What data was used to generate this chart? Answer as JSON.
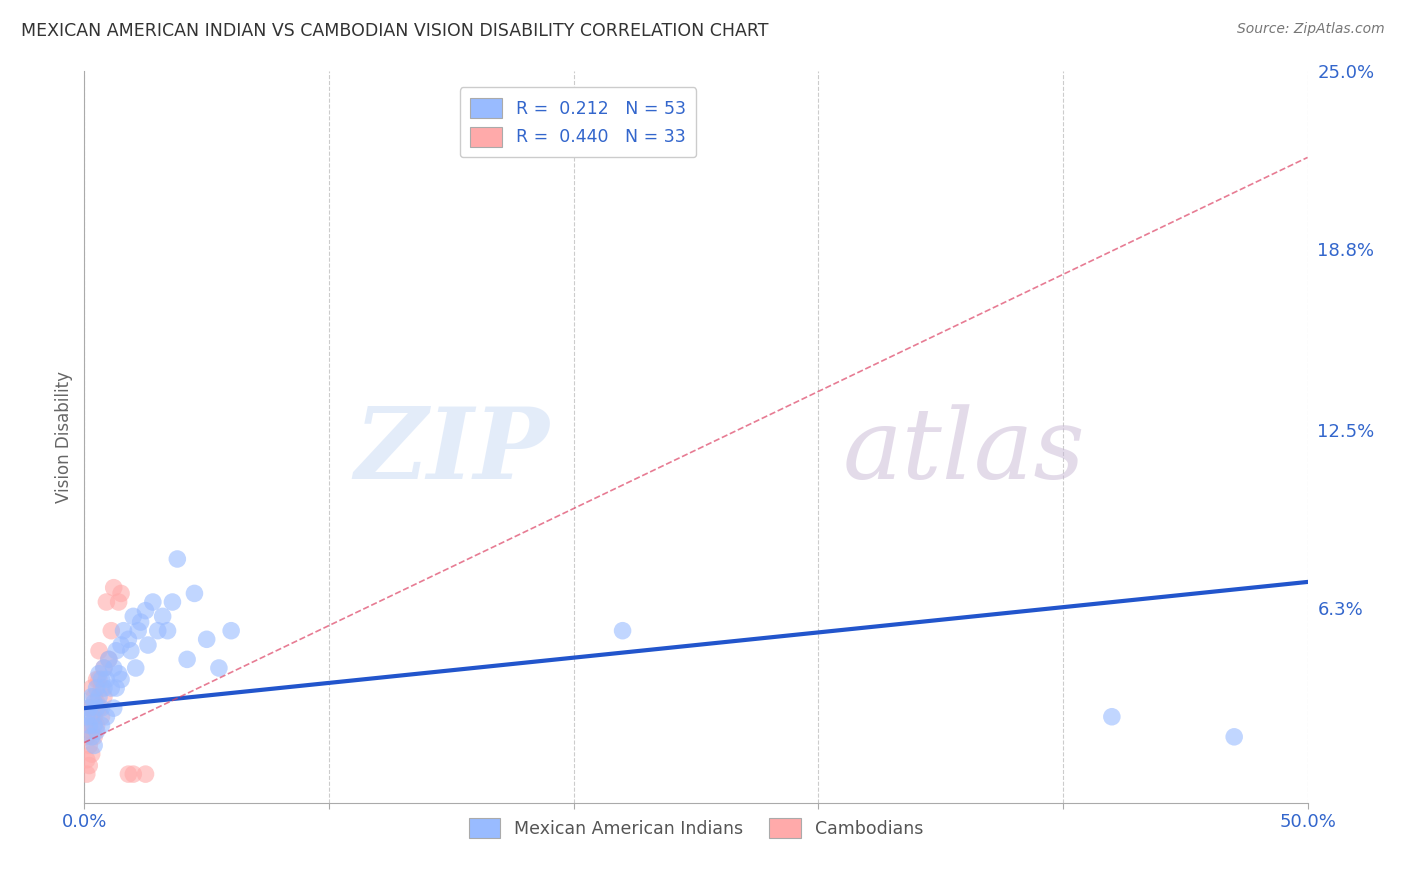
{
  "title": "MEXICAN AMERICAN INDIAN VS CAMBODIAN VISION DISABILITY CORRELATION CHART",
  "source": "Source: ZipAtlas.com",
  "ylabel": "Vision Disability",
  "xlim": [
    0.0,
    0.5
  ],
  "ylim": [
    -0.005,
    0.25
  ],
  "yticks_right": [
    0.25,
    0.188,
    0.125,
    0.063,
    0.0
  ],
  "ytick_labels_right": [
    "25.0%",
    "18.8%",
    "12.5%",
    "6.3%",
    ""
  ],
  "legend_blue_r": "R =  0.212",
  "legend_blue_n": "N = 53",
  "legend_pink_r": "R =  0.440",
  "legend_pink_n": "N = 33",
  "blue_color": "#99bbff",
  "pink_color": "#ffaaaa",
  "trendline_blue_color": "#2255cc",
  "trendline_pink_color": "#dd4466",
  "grid_color": "#cccccc",
  "background_color": "#ffffff",
  "watermark_zip": "ZIP",
  "watermark_atlas": "atlas",
  "blue_scatter_x": [
    0.001,
    0.002,
    0.002,
    0.003,
    0.003,
    0.003,
    0.004,
    0.004,
    0.004,
    0.005,
    0.005,
    0.005,
    0.006,
    0.006,
    0.007,
    0.007,
    0.007,
    0.008,
    0.008,
    0.009,
    0.009,
    0.01,
    0.011,
    0.012,
    0.012,
    0.013,
    0.013,
    0.014,
    0.015,
    0.015,
    0.016,
    0.018,
    0.019,
    0.02,
    0.021,
    0.022,
    0.023,
    0.025,
    0.026,
    0.028,
    0.03,
    0.032,
    0.034,
    0.036,
    0.038,
    0.042,
    0.045,
    0.05,
    0.055,
    0.06,
    0.22,
    0.42,
    0.47
  ],
  "blue_scatter_y": [
    0.025,
    0.028,
    0.022,
    0.032,
    0.025,
    0.018,
    0.03,
    0.022,
    0.015,
    0.035,
    0.028,
    0.02,
    0.04,
    0.032,
    0.038,
    0.028,
    0.022,
    0.042,
    0.035,
    0.038,
    0.025,
    0.045,
    0.035,
    0.042,
    0.028,
    0.048,
    0.035,
    0.04,
    0.05,
    0.038,
    0.055,
    0.052,
    0.048,
    0.06,
    0.042,
    0.055,
    0.058,
    0.062,
    0.05,
    0.065,
    0.055,
    0.06,
    0.055,
    0.065,
    0.08,
    0.045,
    0.068,
    0.052,
    0.042,
    0.055,
    0.055,
    0.025,
    0.018
  ],
  "pink_scatter_x": [
    0.001,
    0.001,
    0.001,
    0.002,
    0.002,
    0.002,
    0.002,
    0.003,
    0.003,
    0.003,
    0.003,
    0.004,
    0.004,
    0.004,
    0.005,
    0.005,
    0.005,
    0.006,
    0.006,
    0.006,
    0.007,
    0.007,
    0.008,
    0.008,
    0.009,
    0.01,
    0.011,
    0.012,
    0.014,
    0.015,
    0.018,
    0.02,
    0.025
  ],
  "pink_scatter_y": [
    0.005,
    0.01,
    0.018,
    0.008,
    0.015,
    0.022,
    0.028,
    0.012,
    0.02,
    0.028,
    0.035,
    0.018,
    0.025,
    0.032,
    0.022,
    0.03,
    0.038,
    0.028,
    0.038,
    0.048,
    0.025,
    0.035,
    0.032,
    0.042,
    0.065,
    0.045,
    0.055,
    0.07,
    0.065,
    0.068,
    0.005,
    0.005,
    0.005
  ],
  "blue_trendline_x": [
    0.0,
    0.5
  ],
  "blue_trendline_y": [
    0.028,
    0.072
  ],
  "pink_trendline_x": [
    0.0,
    0.5
  ],
  "pink_trendline_y": [
    0.016,
    0.22
  ]
}
